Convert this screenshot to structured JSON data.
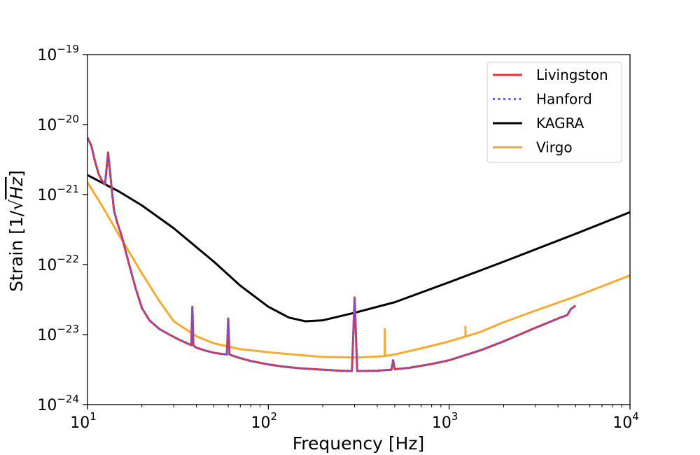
{
  "chart_data": {
    "type": "line",
    "title": "",
    "xlabel": "Frequency [Hz]",
    "ylabel_prefix": "Strain [1/",
    "ylabel_radicand": "Hz",
    "ylabel_suffix": "]",
    "xscale": "log",
    "yscale": "log",
    "xlim": [
      10,
      10000
    ],
    "ylim": [
      1e-24,
      1e-19
    ],
    "grid": false,
    "legend_position": "top-right",
    "x_ticks": [
      {
        "value": 10,
        "base": "10",
        "exp": "1"
      },
      {
        "value": 100,
        "base": "10",
        "exp": "2"
      },
      {
        "value": 1000,
        "base": "10",
        "exp": "3"
      },
      {
        "value": 10000,
        "base": "10",
        "exp": "4"
      }
    ],
    "y_ticks": [
      {
        "value": 1e-24,
        "base": "10",
        "exp": "−24"
      },
      {
        "value": 1e-23,
        "base": "10",
        "exp": "−23"
      },
      {
        "value": 1e-22,
        "base": "10",
        "exp": "−22"
      },
      {
        "value": 1e-21,
        "base": "10",
        "exp": "−21"
      },
      {
        "value": 1e-20,
        "base": "10",
        "exp": "−20"
      },
      {
        "value": 1e-19,
        "base": "10",
        "exp": "−19"
      }
    ],
    "series": [
      {
        "name": "Livingston",
        "color": "#f03030",
        "style": "solid",
        "x": [
          10,
          10.5,
          11,
          11.5,
          12,
          12.5,
          13,
          13.5,
          14,
          14.6,
          15.5,
          17,
          18.5,
          20,
          22,
          25,
          28,
          32,
          36,
          37.5,
          38,
          38.5,
          40,
          45,
          50,
          55,
          59,
          60,
          61,
          65,
          70,
          80,
          90,
          100,
          120,
          150,
          200,
          250,
          290,
          300,
          310,
          330,
          400,
          480,
          490,
          500,
          600,
          800,
          1000,
          1500,
          2000,
          3000,
          4000,
          4500,
          4600,
          4700,
          5000
        ],
        "y": [
          6.5e-21,
          5e-21,
          3e-21,
          2e-21,
          1.6e-21,
          1.4e-21,
          4e-21,
          1.5e-21,
          6e-22,
          4e-22,
          2.5e-22,
          1e-22,
          4.5e-23,
          2.4e-23,
          1.6e-23,
          1.2e-23,
          1.02e-23,
          8.5e-24,
          7.4e-24,
          7.1e-24,
          2.5e-23,
          7e-24,
          6.5e-24,
          5.9e-24,
          5.5e-24,
          5.3e-24,
          5.2e-24,
          1.7e-23,
          5.2e-24,
          4.9e-24,
          4.6e-24,
          4.2e-24,
          3.95e-24,
          3.75e-24,
          3.5e-24,
          3.3e-24,
          3.15e-24,
          3.05e-24,
          3.02e-24,
          3.4e-23,
          3.02e-24,
          3.02e-24,
          3.05e-24,
          3.15e-24,
          4.3e-24,
          3.2e-24,
          3.35e-24,
          3.8e-24,
          4.3e-24,
          6e-24,
          8e-24,
          1.25e-23,
          1.7e-23,
          1.9e-23,
          2.1e-23,
          2.3e-23,
          2.6e-23
        ]
      },
      {
        "name": "Hanford",
        "color": "#5a5aee",
        "style": "dotted",
        "x": [
          10,
          10.5,
          11,
          11.5,
          12,
          12.5,
          13,
          13.5,
          14,
          14.6,
          15.5,
          17,
          18.5,
          20,
          22,
          25,
          28,
          32,
          36,
          37.5,
          38,
          38.5,
          40,
          45,
          50,
          55,
          59,
          60,
          61,
          65,
          70,
          80,
          90,
          100,
          120,
          150,
          200,
          250,
          290,
          300,
          310,
          330,
          400,
          480,
          490,
          500,
          600,
          800,
          1000,
          1500,
          2000,
          3000,
          4000,
          4500,
          4600,
          4700,
          5000
        ],
        "y": [
          6.5e-21,
          5e-21,
          3e-21,
          2e-21,
          1.6e-21,
          1.4e-21,
          4e-21,
          1.5e-21,
          6e-22,
          4e-22,
          2.5e-22,
          1e-22,
          4.5e-23,
          2.4e-23,
          1.6e-23,
          1.2e-23,
          1.02e-23,
          8.5e-24,
          7.4e-24,
          7.1e-24,
          2.5e-23,
          7e-24,
          6.5e-24,
          5.9e-24,
          5.5e-24,
          5.3e-24,
          5.2e-24,
          1.7e-23,
          5.2e-24,
          4.9e-24,
          4.6e-24,
          4.2e-24,
          3.95e-24,
          3.75e-24,
          3.5e-24,
          3.3e-24,
          3.15e-24,
          3.05e-24,
          3.02e-24,
          3.4e-23,
          3.02e-24,
          3.02e-24,
          3.05e-24,
          3.15e-24,
          4.3e-24,
          3.2e-24,
          3.35e-24,
          3.8e-24,
          4.3e-24,
          6e-24,
          8e-24,
          1.25e-23,
          1.7e-23,
          1.9e-23,
          2.1e-23,
          2.3e-23,
          2.6e-23
        ]
      },
      {
        "name": "KAGRA",
        "color": "#000000",
        "style": "solid",
        "x": [
          10,
          15,
          20,
          30,
          50,
          70,
          100,
          130,
          160,
          200,
          300,
          500,
          1000,
          2000,
          5000,
          10000
        ],
        "y": [
          1.9e-21,
          1.1e-21,
          7e-22,
          3.3e-22,
          1.1e-22,
          5e-23,
          2.5e-23,
          1.75e-23,
          1.55e-23,
          1.6e-23,
          2.05e-23,
          2.9e-23,
          5.6e-23,
          1.1e-22,
          2.75e-22,
          5.6e-22
        ]
      },
      {
        "name": "Virgo",
        "color": "#f5aa30",
        "style": "solid",
        "x": [
          10,
          12,
          15,
          20,
          25,
          30,
          40,
          50,
          70,
          100,
          150,
          200,
          300,
          400,
          440,
          441,
          442,
          500,
          600,
          800,
          1000,
          1200,
          1230,
          1231,
          1232,
          1300,
          1500,
          2000,
          3000,
          5000,
          10000
        ],
        "y": [
          1.5e-21,
          7e-22,
          2.6e-22,
          7.5e-23,
          3e-23,
          1.55e-23,
          9.5e-24,
          7.5e-24,
          6.2e-24,
          5.6e-24,
          5.1e-24,
          4.8e-24,
          4.7e-24,
          4.85e-24,
          4.95e-24,
          1.2e-23,
          4.95e-24,
          5.2e-24,
          5.8e-24,
          6.9e-24,
          8e-24,
          9.2e-24,
          9.4e-24,
          1.3e-23,
          9.4e-24,
          9.8e-24,
          1.1e-23,
          1.5e-23,
          2.2e-23,
          3.5e-23,
          7e-23
        ]
      }
    ]
  }
}
